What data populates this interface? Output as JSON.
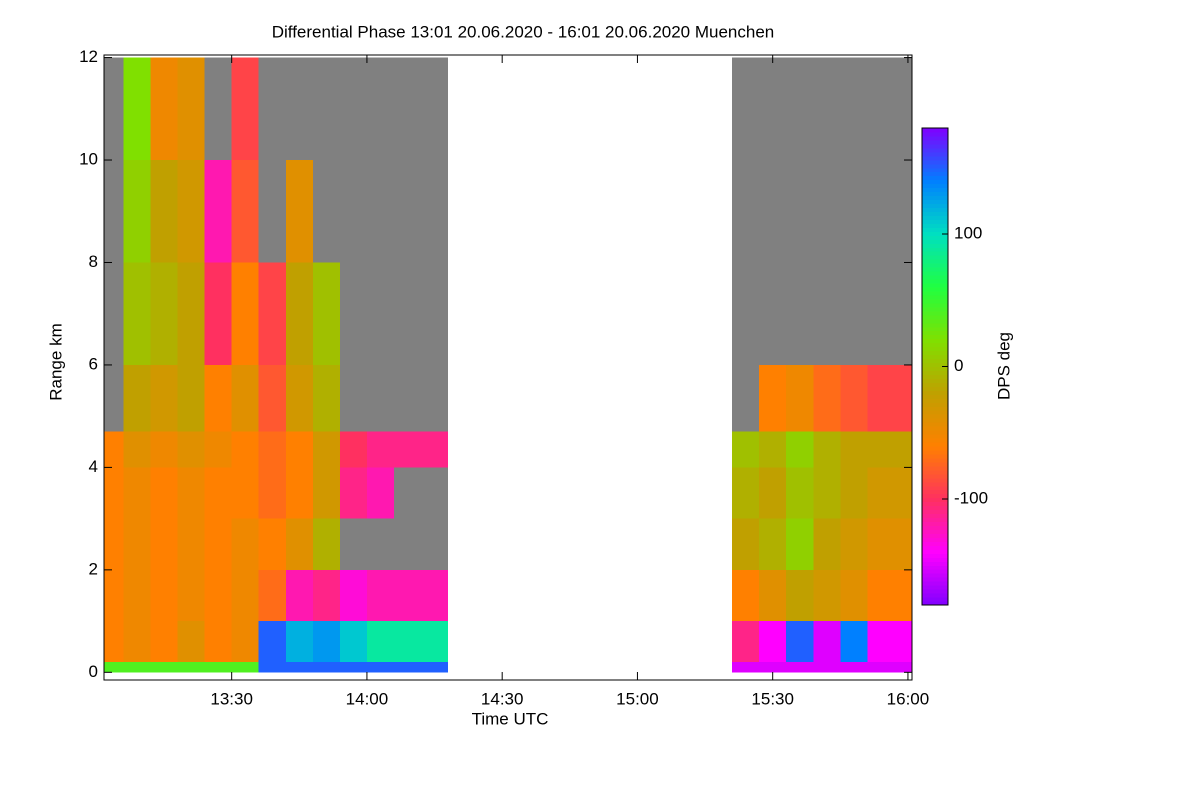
{
  "chart_data": {
    "type": "heatmap",
    "title": "Differential Phase   13:01 20.06.2020 - 16:01 20.06.2020 Muenchen",
    "xlabel": "Time UTC",
    "ylabel": "Range km",
    "colorbar_label": "DPS deg",
    "xlim": [
      13.028,
      16.015
    ],
    "ylim": [
      -0.15,
      12.05
    ],
    "zlim": [
      -180,
      180
    ],
    "xticks": [
      {
        "value": 13.5,
        "label": "13:30"
      },
      {
        "value": 14.0,
        "label": "14:00"
      },
      {
        "value": 14.5,
        "label": "14:30"
      },
      {
        "value": 15.0,
        "label": "15:00"
      },
      {
        "value": 15.5,
        "label": "15:30"
      },
      {
        "value": 16.0,
        "label": "16:00"
      }
    ],
    "yticks": [
      0,
      2,
      4,
      6,
      8,
      10,
      12
    ],
    "zticks": [
      100,
      0,
      -100
    ],
    "colors": [
      "#8000ff",
      "#ff00ff",
      "#ff3060",
      "#ff8000",
      "#c0a000",
      "#80e000",
      "#20ff40",
      "#00e0c0",
      "#0080ff",
      "#8000ff"
    ],
    "no_echo_color": "#808080",
    "segments": [
      {
        "x_edges": [
          13.028,
          13.1,
          13.2,
          13.3,
          13.4,
          13.5,
          13.6,
          13.7,
          13.8,
          13.9,
          14.0,
          14.1,
          14.3
        ],
        "y_edges": [
          0,
          0.2,
          1,
          2,
          3,
          4,
          4.7,
          6,
          8,
          10,
          12
        ],
        "values": [
          [
            40,
            40,
            40,
            40,
            40,
            40,
            150,
            150,
            150,
            150,
            150,
            150
          ],
          [
            -60,
            -50,
            -60,
            -40,
            -60,
            -50,
            150,
            120,
            130,
            110,
            90,
            90
          ],
          [
            -60,
            -50,
            -60,
            -50,
            -60,
            -50,
            -70,
            -120,
            -110,
            -130,
            -120,
            -120
          ],
          [
            -60,
            -50,
            -60,
            -50,
            -60,
            -50,
            -60,
            -40,
            -10,
            null,
            null,
            null
          ],
          [
            -60,
            -50,
            -60,
            -50,
            -60,
            -60,
            -70,
            -60,
            -30,
            -110,
            -120,
            null
          ],
          [
            -60,
            -40,
            -50,
            -40,
            -50,
            -60,
            -70,
            -60,
            -30,
            -100,
            -110,
            -110
          ],
          [
            null,
            -20,
            -30,
            -20,
            -60,
            -40,
            -80,
            -30,
            -10,
            null,
            null,
            null
          ],
          [
            null,
            0,
            -10,
            -20,
            -100,
            -60,
            -90,
            -20,
            0,
            null,
            null,
            null
          ],
          [
            null,
            10,
            -20,
            -30,
            -120,
            -80,
            null,
            -40,
            null,
            null,
            null,
            null
          ],
          [
            null,
            20,
            -50,
            -40,
            null,
            -90,
            null,
            null,
            null,
            null,
            null,
            null
          ]
        ]
      },
      {
        "x_edges": [
          15.35,
          15.45,
          15.55,
          15.65,
          15.75,
          15.85,
          16.015
        ],
        "y_edges": [
          0,
          0.2,
          1,
          2,
          3,
          4,
          4.7,
          6,
          8,
          10,
          12
        ],
        "values": [
          [
            -150,
            -150,
            -150,
            -150,
            -150,
            -150
          ],
          [
            -110,
            -140,
            150,
            -150,
            140,
            -140
          ],
          [
            -60,
            -40,
            -20,
            -30,
            -40,
            -60
          ],
          [
            -20,
            -10,
            10,
            -20,
            -30,
            -40
          ],
          [
            -10,
            -20,
            0,
            -10,
            -20,
            -30
          ],
          [
            0,
            -10,
            10,
            -10,
            -20,
            -20
          ],
          [
            null,
            -60,
            -50,
            -70,
            -80,
            -90
          ],
          [
            null,
            null,
            null,
            null,
            null,
            null
          ],
          [
            null,
            null,
            null,
            null,
            null,
            null
          ],
          [
            null,
            null,
            null,
            null,
            null,
            null
          ]
        ]
      }
    ]
  }
}
